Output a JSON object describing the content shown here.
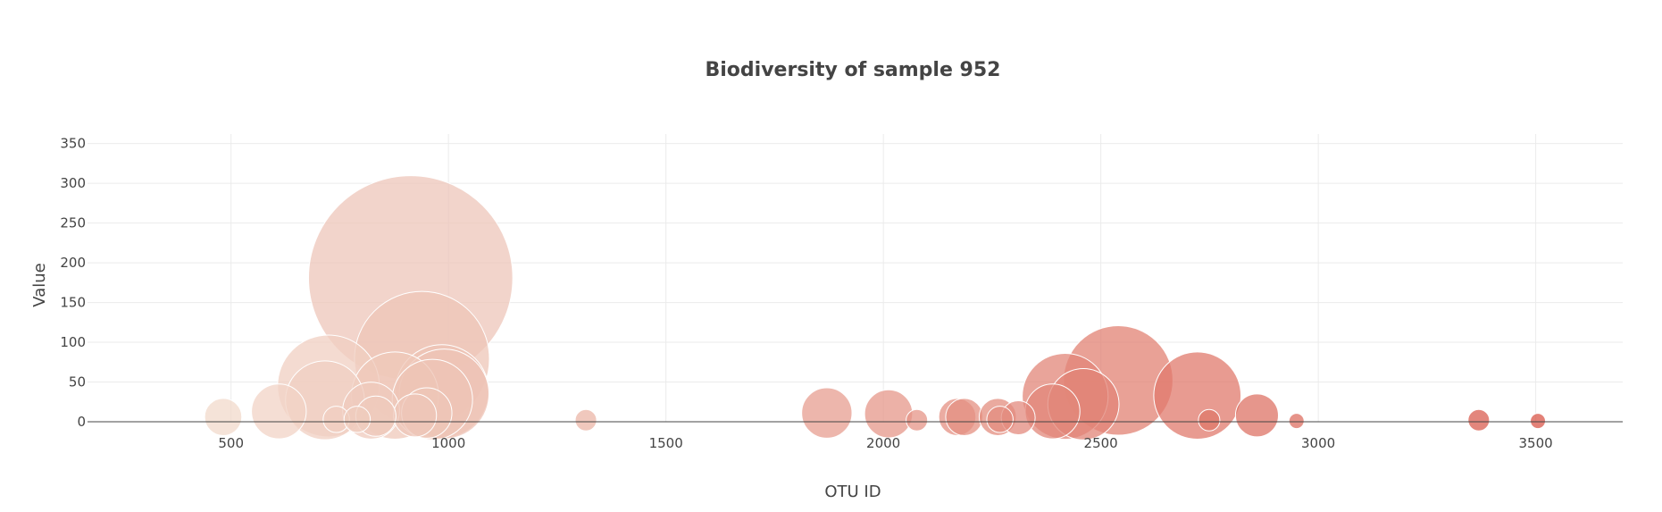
{
  "chart_data": {
    "type": "scatter",
    "title": "Biodiversity of sample 952",
    "xlabel": "OTU ID",
    "ylabel": "Value",
    "xlim": [
      170,
      3700
    ],
    "ylim": [
      0,
      362
    ],
    "x_ticks": [
      500,
      1000,
      1500,
      2000,
      2500,
      3000,
      3500
    ],
    "y_ticks": [
      0,
      50,
      100,
      150,
      200,
      250,
      300,
      350
    ],
    "grid": true,
    "marker_size_encodes": "value",
    "colorscale": "peach-to-red by OTU ID",
    "colors": {
      "low": "#f2d9cb",
      "high": "#d9574a"
    },
    "points": [
      {
        "x": 482,
        "y": 6
      },
      {
        "x": 610,
        "y": 13
      },
      {
        "x": 716,
        "y": 27
      },
      {
        "x": 724,
        "y": 45
      },
      {
        "x": 742,
        "y": 3
      },
      {
        "x": 790,
        "y": 3
      },
      {
        "x": 822,
        "y": 14
      },
      {
        "x": 833,
        "y": 7
      },
      {
        "x": 877,
        "y": 33
      },
      {
        "x": 913,
        "y": 181
      },
      {
        "x": 923,
        "y": 8
      },
      {
        "x": 939,
        "y": 79
      },
      {
        "x": 950,
        "y": 11
      },
      {
        "x": 963,
        "y": 28
      },
      {
        "x": 985,
        "y": 38
      },
      {
        "x": 990,
        "y": 35
      },
      {
        "x": 1316,
        "y": 2
      },
      {
        "x": 1870,
        "y": 11
      },
      {
        "x": 2012,
        "y": 10
      },
      {
        "x": 2077,
        "y": 2
      },
      {
        "x": 2170,
        "y": 6
      },
      {
        "x": 2186,
        "y": 6
      },
      {
        "x": 2263,
        "y": 6
      },
      {
        "x": 2268,
        "y": 3
      },
      {
        "x": 2310,
        "y": 5
      },
      {
        "x": 2389,
        "y": 13
      },
      {
        "x": 2418,
        "y": 32
      },
      {
        "x": 2460,
        "y": 22
      },
      {
        "x": 2540,
        "y": 52
      },
      {
        "x": 2722,
        "y": 33
      },
      {
        "x": 2749,
        "y": 2
      },
      {
        "x": 2859,
        "y": 8
      },
      {
        "x": 2950,
        "y": 1
      },
      {
        "x": 3369,
        "y": 2
      },
      {
        "x": 3505,
        "y": 1
      }
    ]
  }
}
